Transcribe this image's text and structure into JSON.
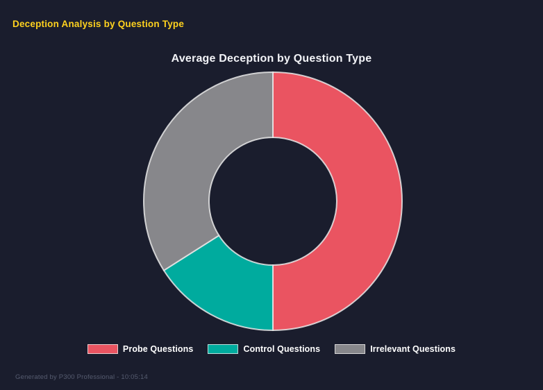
{
  "page": {
    "title": "Deception Analysis by Question Type",
    "footer": "Generated by P300 Professional - 10:05:14"
  },
  "colors": {
    "background": "#1a1d2d",
    "title": "#ffd21e",
    "chart_title": "#f2f3f7",
    "legend_text": "#ffffff",
    "footer_text": "#565c70",
    "segment_border": "#e8e8e8"
  },
  "chart_data": {
    "type": "pie",
    "donut": true,
    "title": "Average Deception by Question Type",
    "categories": [
      "Probe Questions",
      "Control Questions",
      "Irrelevant Questions"
    ],
    "values": [
      50,
      16,
      34
    ],
    "colors": [
      "#ea5461",
      "#00ab9e",
      "#87878b"
    ],
    "start_angle_deg": 0,
    "cutout_ratio": 0.495,
    "legend_position": "bottom",
    "grid": false
  }
}
